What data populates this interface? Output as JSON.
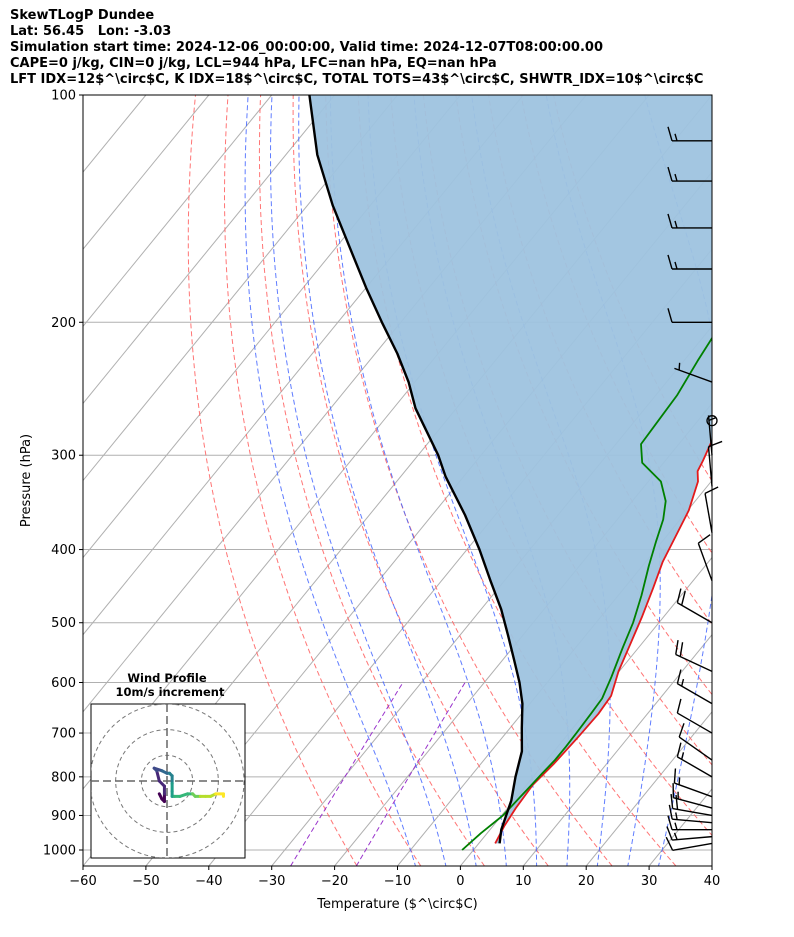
{
  "header": {
    "title": "SkewTLogP Dundee",
    "location": "Lat: 56.45   Lon: -3.03",
    "times": "Simulation start time: 2024-12-06_00:00:00, Valid time: 2024-12-07T08:00:00.00",
    "indices_1": "CAPE=0 j/kg, CIN=0 j/kg, LCL=944 hPa, LFC=nan hPa, EQ=nan hPa",
    "indices_2": "LFT IDX=12$^\\circ$C, K IDX=18$^\\circ$C, TOTAL TOTS=43$^\\circ$C, SHWTR_IDX=10$^\\circ$C"
  },
  "colors": {
    "temperature": "#e31a1c",
    "dewpoint": "#008000",
    "parcel": "#000000",
    "cape_fill": "#9ec3df",
    "dry_adiabat": "#ff6666",
    "moist_adiabat": "#4466ff",
    "mixing_ratio": "#9933cc",
    "isotherm": "#b0b0b0"
  },
  "chart_data": {
    "type": "line",
    "title": "SkewTLogP Dundee",
    "xlabel": "Temperature ($^\\circ$C)",
    "ylabel": "Pressure (hPa)",
    "xlim": [
      -60,
      40
    ],
    "ylim": [
      1050,
      100
    ],
    "y_scale": "log",
    "x_ticks": [
      -60,
      -50,
      -40,
      -30,
      -20,
      -10,
      0,
      10,
      20,
      30,
      40
    ],
    "y_ticks": [
      1000,
      900,
      800,
      700,
      600,
      500,
      400,
      300,
      200,
      100
    ],
    "grid": true,
    "series": [
      {
        "name": "Temperature",
        "points": [
          [
            2.6,
            980
          ],
          [
            1.8,
            930
          ],
          [
            1.3,
            880
          ],
          [
            1.0,
            820
          ],
          [
            1.6,
            770
          ],
          [
            2.0,
            710
          ],
          [
            2.2,
            660
          ],
          [
            1.9,
            625
          ],
          [
            -0.1,
            580
          ],
          [
            -1.9,
            530
          ],
          [
            -3.5,
            490
          ],
          [
            -5.4,
            450
          ],
          [
            -7.3,
            415
          ],
          [
            -8.5,
            385
          ],
          [
            -9.8,
            355
          ],
          [
            -12.1,
            325
          ],
          [
            -13.5,
            315
          ],
          [
            -14.0,
            305
          ],
          [
            -15.3,
            285
          ],
          [
            -16.5,
            268
          ],
          [
            -17.6,
            252
          ],
          [
            -18.8,
            235
          ],
          [
            -20.5,
            215
          ],
          [
            -21.6,
            200
          ],
          [
            -23.1,
            183
          ],
          [
            -24.6,
            168
          ],
          [
            -26.2,
            155
          ],
          [
            -27.8,
            142
          ],
          [
            -29.3,
            131
          ],
          [
            -30.7,
            121
          ],
          [
            -31.8,
            112
          ],
          [
            -33.0,
            100
          ]
        ]
      },
      {
        "name": "Dewpoint",
        "points": [
          [
            -1.8,
            1000
          ],
          [
            -1.0,
            950
          ],
          [
            0.2,
            900
          ],
          [
            0.5,
            860
          ],
          [
            0.8,
            820
          ],
          [
            1.0,
            790
          ],
          [
            1.3,
            760
          ],
          [
            1.3,
            730
          ],
          [
            1.2,
            700
          ],
          [
            1.0,
            660
          ],
          [
            0.8,
            630
          ],
          [
            -0.5,
            590
          ],
          [
            -2.5,
            540
          ],
          [
            -4.1,
            500
          ],
          [
            -6.3,
            460
          ],
          [
            -9.0,
            420
          ],
          [
            -11.0,
            390
          ],
          [
            -12.7,
            365
          ],
          [
            -14.7,
            345
          ],
          [
            -18.0,
            325
          ],
          [
            -23.4,
            307
          ],
          [
            -26.0,
            290
          ],
          [
            -26.3,
            270
          ],
          [
            -26.6,
            250
          ],
          [
            -27.8,
            225
          ],
          [
            -28.7,
            205
          ],
          [
            -29.5,
            190
          ],
          [
            -30.0,
            177
          ],
          [
            -30.2,
            165
          ],
          [
            -30.3,
            153
          ],
          [
            -30.0,
            141
          ],
          [
            -29.8,
            130
          ],
          [
            -30.0,
            120
          ],
          [
            -30.3,
            110
          ],
          [
            -31.3,
            100
          ]
        ]
      },
      {
        "name": "Parcel",
        "points": [
          [
            3.3,
            980
          ],
          [
            1.8,
            940
          ],
          [
            -0.4,
            860
          ],
          [
            -2.8,
            800
          ],
          [
            -5.1,
            740
          ],
          [
            -8.1,
            690
          ],
          [
            -11.2,
            640
          ],
          [
            -14.4,
            600
          ],
          [
            -18.2,
            560
          ],
          [
            -22.3,
            520
          ],
          [
            -26.8,
            480
          ],
          [
            -32.2,
            440
          ],
          [
            -38.0,
            400
          ],
          [
            -44.8,
            360
          ],
          [
            -52.9,
            320
          ],
          [
            -56.8,
            300
          ],
          [
            -66.5,
            260
          ],
          [
            -71.0,
            240
          ],
          [
            -76.5,
            220
          ],
          [
            -83.0,
            200
          ],
          [
            -90.0,
            180
          ],
          [
            -97.5,
            160
          ],
          [
            -106.0,
            140
          ],
          [
            -115.0,
            120
          ],
          [
            -124.0,
            100
          ]
        ]
      }
    ],
    "dry_adiabats_C": [
      -20,
      -10,
      0,
      10,
      20,
      30,
      40,
      50,
      60,
      70,
      80,
      90
    ],
    "moist_adiabats_C": [
      -10,
      -5,
      0,
      5,
      10,
      15,
      20,
      25,
      30
    ],
    "mixing_ratio_lines": "purple dashed",
    "wind_barbs": [
      {
        "p": 980,
        "dir": 260,
        "kt": 11
      },
      {
        "p": 960,
        "dir": 265,
        "kt": 13
      },
      {
        "p": 940,
        "dir": 270,
        "kt": 15
      },
      {
        "p": 920,
        "dir": 275,
        "kt": 17
      },
      {
        "p": 900,
        "dir": 280,
        "kt": 18
      },
      {
        "p": 880,
        "dir": 285,
        "kt": 17
      },
      {
        "p": 850,
        "dir": 290,
        "kt": 16
      },
      {
        "p": 800,
        "dir": 300,
        "kt": 14
      },
      {
        "p": 760,
        "dir": 305,
        "kt": 12
      },
      {
        "p": 700,
        "dir": 300,
        "kt": 12
      },
      {
        "p": 640,
        "dir": 300,
        "kt": 15
      },
      {
        "p": 580,
        "dir": 295,
        "kt": 18
      },
      {
        "p": 500,
        "dir": 300,
        "kt": 20
      },
      {
        "p": 440,
        "dir": 340,
        "kt": 12
      },
      {
        "p": 380,
        "dir": 350,
        "kt": 10
      },
      {
        "p": 330,
        "dir": 355,
        "kt": 8
      },
      {
        "p": 300,
        "dir": 355,
        "kt": 6
      },
      {
        "p": 270,
        "dir": 0,
        "kt": 0
      },
      {
        "p": 240,
        "dir": 290,
        "kt": 5
      },
      {
        "p": 200,
        "dir": 270,
        "kt": 10
      },
      {
        "p": 170,
        "dir": 270,
        "kt": 15
      },
      {
        "p": 150,
        "dir": 270,
        "kt": 15
      },
      {
        "p": 130,
        "dir": 270,
        "kt": 15
      },
      {
        "p": 115,
        "dir": 270,
        "kt": 15
      }
    ],
    "hodograph": {
      "title": "Wind Profile",
      "subtitle": "10m/s increment",
      "range_ms": 30,
      "rings_ms": [
        10,
        20,
        30
      ],
      "points": [
        [
          -3,
          -5
        ],
        [
          -2,
          -7
        ],
        [
          -1,
          -8
        ],
        [
          -1,
          -5
        ],
        [
          -1,
          -2
        ],
        [
          -3,
          0
        ],
        [
          -4,
          4
        ],
        [
          -5,
          5
        ],
        [
          -2,
          4
        ],
        [
          0,
          3
        ],
        [
          0,
          3
        ],
        [
          1,
          3
        ],
        [
          2,
          2
        ],
        [
          2,
          -1
        ],
        [
          2,
          -4
        ],
        [
          2,
          -6
        ],
        [
          3,
          -6
        ],
        [
          5,
          -6
        ],
        [
          8,
          -5
        ],
        [
          10,
          -5
        ],
        [
          11,
          -6
        ],
        [
          13,
          -6
        ],
        [
          15,
          -6
        ],
        [
          17,
          -6
        ],
        [
          19,
          -5
        ],
        [
          22,
          -5
        ],
        [
          22,
          -6
        ]
      ]
    }
  }
}
